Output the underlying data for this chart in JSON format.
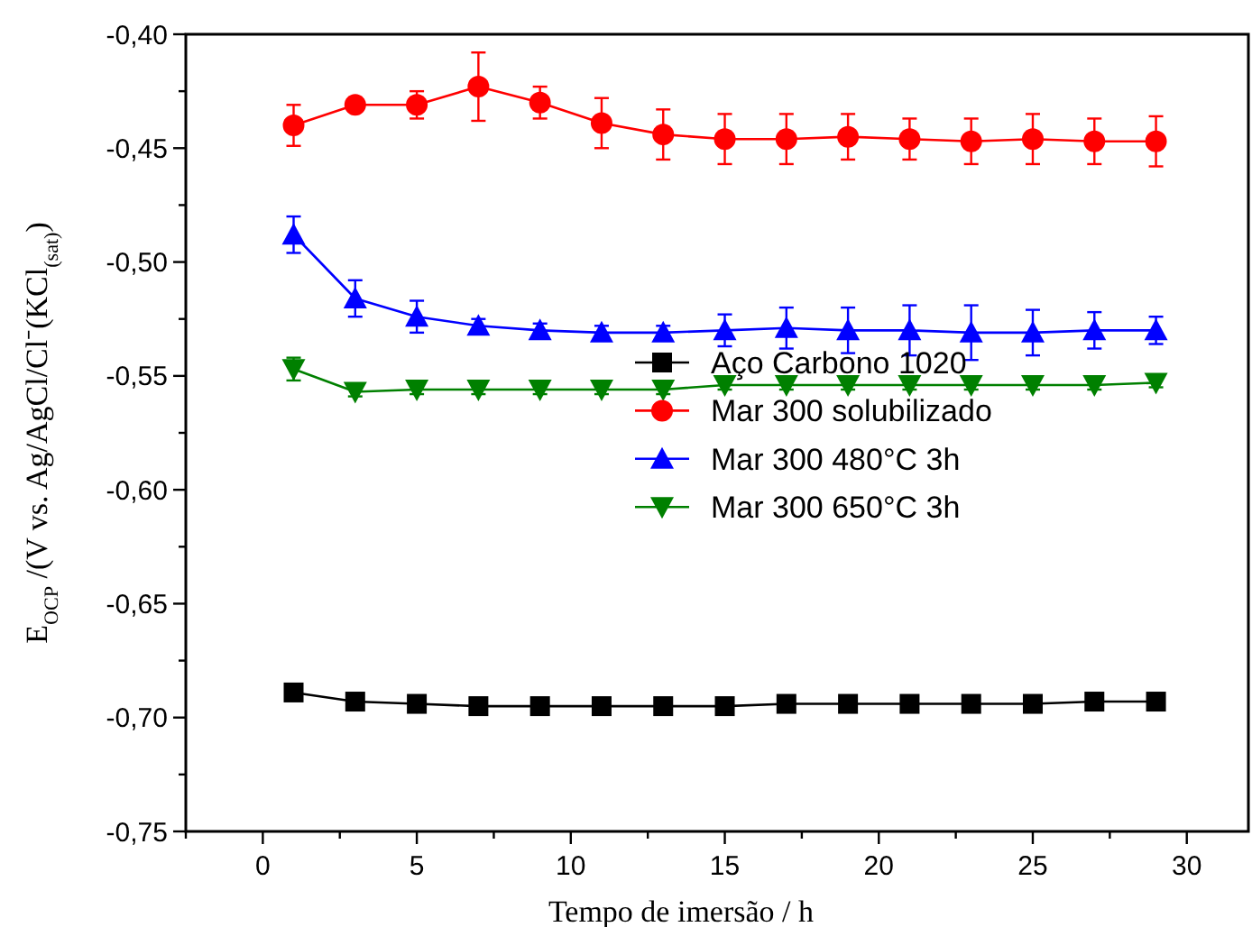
{
  "chart_data": {
    "type": "line",
    "xlabel": "Tempo de imersão / h",
    "ylabel": "E$_{OCP}$ /(V vs. Ag/AgCl/Cl⁻(KCl$_{(sat)}$)",
    "x": [
      1,
      3,
      5,
      7,
      9,
      11,
      13,
      15,
      17,
      19,
      21,
      23,
      25,
      27,
      29
    ],
    "xlim": [
      -2.5,
      32
    ],
    "xticks": [
      {
        "value": -2.5,
        "label": null
      },
      0,
      {
        "value": 2.5,
        "label": null
      },
      5,
      {
        "value": 7.5,
        "label": null
      },
      10,
      {
        "value": 12.5,
        "label": null
      },
      15,
      {
        "value": 17.5,
        "label": null
      },
      20,
      {
        "value": 22.5,
        "label": null
      },
      25,
      {
        "value": 27.5,
        "label": null
      },
      30
    ],
    "ylim": [
      -0.75,
      -0.4
    ],
    "yticks": [
      {
        "value": -0.75,
        "label": "-0,75"
      },
      {
        "value": -0.725,
        "label": null
      },
      {
        "value": -0.7,
        "label": "-0,70"
      },
      {
        "value": -0.675,
        "label": null
      },
      {
        "value": -0.65,
        "label": "-0,65"
      },
      {
        "value": -0.625,
        "label": null
      },
      {
        "value": -0.6,
        "label": "-0,60"
      },
      {
        "value": -0.575,
        "label": null
      },
      {
        "value": -0.55,
        "label": "-0,55"
      },
      {
        "value": -0.525,
        "label": null
      },
      {
        "value": -0.5,
        "label": "-0,50"
      },
      {
        "value": -0.475,
        "label": null
      },
      {
        "value": -0.45,
        "label": "-0,45"
      },
      {
        "value": -0.425,
        "label": null
      },
      {
        "value": -0.4,
        "label": "-0,40"
      }
    ],
    "legend": "right",
    "grid": false,
    "line_style": "solid",
    "series": [
      {
        "name": "Aço Carbono 1020",
        "color": "#000000",
        "marker": "square",
        "values": [
          -0.689,
          -0.693,
          -0.694,
          -0.695,
          -0.695,
          -0.695,
          -0.695,
          -0.695,
          -0.694,
          -0.694,
          -0.694,
          -0.694,
          -0.694,
          -0.693,
          -0.693
        ]
      },
      {
        "name": "Mar 300 solubilizado",
        "color": "#ff0000",
        "marker": "circle",
        "values": [
          -0.44,
          -0.431,
          -0.431,
          -0.423,
          -0.43,
          -0.439,
          -0.444,
          -0.446,
          -0.446,
          -0.445,
          -0.446,
          -0.447,
          -0.446,
          -0.447,
          -0.447
        ],
        "errors": [
          0.009,
          0.002,
          0.006,
          0.015,
          0.007,
          0.011,
          0.011,
          0.011,
          0.011,
          0.01,
          0.009,
          0.01,
          0.011,
          0.01,
          0.011
        ]
      },
      {
        "name": "Mar 300 480°C 3h",
        "color": "#0000ff",
        "marker": "triangle",
        "values": [
          -0.488,
          -0.516,
          -0.524,
          -0.528,
          -0.53,
          -0.531,
          -0.531,
          -0.53,
          -0.529,
          -0.53,
          -0.53,
          -0.531,
          -0.531,
          -0.53,
          -0.53
        ],
        "errors": [
          0.008,
          0.008,
          0.007,
          0.003,
          0.003,
          0.003,
          0.003,
          0.007,
          0.009,
          0.01,
          0.011,
          0.012,
          0.01,
          0.008,
          0.006
        ]
      },
      {
        "name": "Mar 300 650°C 3h",
        "color": "#008000",
        "marker": "triangle-down",
        "values": [
          -0.547,
          -0.557,
          -0.556,
          -0.556,
          -0.556,
          -0.556,
          -0.556,
          -0.554,
          -0.554,
          -0.554,
          -0.554,
          -0.554,
          -0.554,
          -0.554,
          -0.553
        ],
        "errors": [
          0.005,
          0.002,
          0.002,
          0.002,
          0.002,
          0.002,
          0.002,
          0.002,
          0.002,
          0.002,
          0.002,
          0.002,
          0.002,
          0.002,
          0.002
        ]
      }
    ]
  }
}
